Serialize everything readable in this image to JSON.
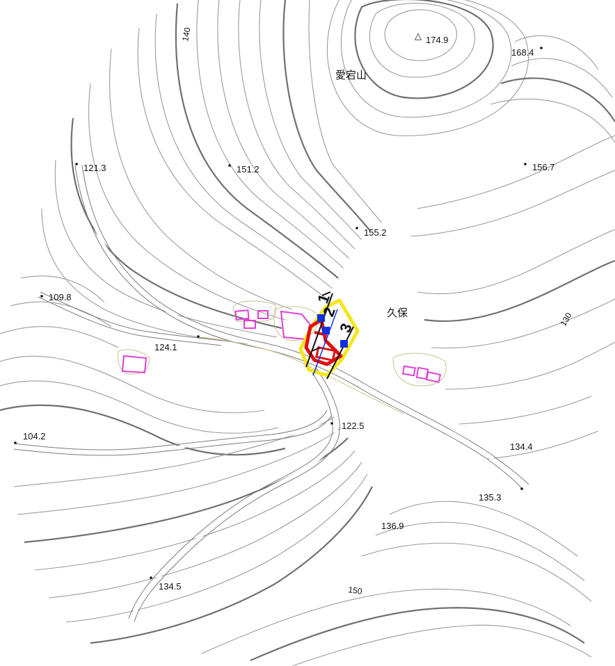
{
  "map": {
    "places": [
      {
        "id": "atago",
        "name": "愛宕山"
      },
      {
        "id": "kubo",
        "name": "久保"
      }
    ],
    "summit": {
      "symbol": "△",
      "elevation": "174.9"
    },
    "spot_heights": [
      "168.4",
      "121.3",
      "151.2",
      "156.7",
      "155.2",
      "109.8",
      "124.1",
      "122.5",
      "104.2",
      "134.4",
      "135.3",
      "136.9",
      "134.5"
    ],
    "contour_labels": [
      "140",
      "130",
      "150"
    ],
    "section_marks": [
      "1",
      "2",
      "3"
    ],
    "colors": {
      "contour": "#9a9a9a",
      "index_contour": "#6f6f6f",
      "building": "#e23ed8",
      "highlight_area": "#f5e61a",
      "highlight_outline": "#e01010",
      "section_point": "#1030e0",
      "section_line": "#111111"
    }
  }
}
